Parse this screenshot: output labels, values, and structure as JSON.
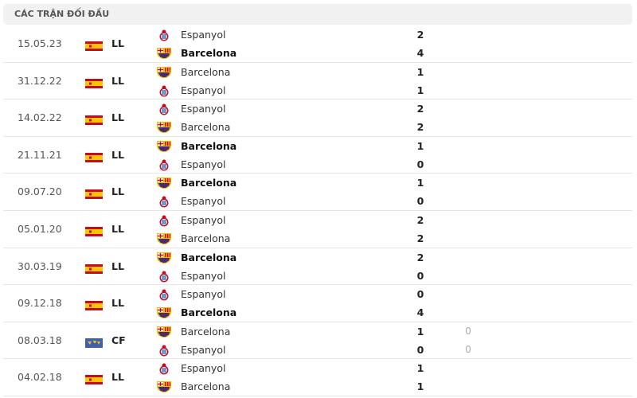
{
  "title": "CÁC TRẬN ĐỐI ĐẦU",
  "colors": {
    "espanyol": "#1a5bb5",
    "barcelona_red": "#a50044",
    "barcelona_blue": "#004d98",
    "spain_red": "#c60b1e",
    "spain_yellow": "#ffc400"
  },
  "matches": [
    {
      "date": "15.05.23",
      "comp": "LL",
      "flag": "spain-flag",
      "teams": [
        {
          "name": "Espanyol",
          "logo": "espanyol",
          "score": "2",
          "bold": false
        },
        {
          "name": "Barcelona",
          "logo": "barcelona",
          "score": "4",
          "bold": true
        }
      ]
    },
    {
      "date": "31.12.22",
      "comp": "LL",
      "flag": "spain-flag",
      "teams": [
        {
          "name": "Barcelona",
          "logo": "barcelona",
          "score": "1",
          "bold": false
        },
        {
          "name": "Espanyol",
          "logo": "espanyol",
          "score": "1",
          "bold": false
        }
      ]
    },
    {
      "date": "14.02.22",
      "comp": "LL",
      "flag": "spain-flag",
      "teams": [
        {
          "name": "Espanyol",
          "logo": "espanyol",
          "score": "2",
          "bold": false
        },
        {
          "name": "Barcelona",
          "logo": "barcelona",
          "score": "2",
          "bold": false
        }
      ]
    },
    {
      "date": "21.11.21",
      "comp": "LL",
      "flag": "spain-flag",
      "teams": [
        {
          "name": "Barcelona",
          "logo": "barcelona",
          "score": "1",
          "bold": true
        },
        {
          "name": "Espanyol",
          "logo": "espanyol",
          "score": "0",
          "bold": false
        }
      ]
    },
    {
      "date": "09.07.20",
      "comp": "LL",
      "flag": "spain-flag",
      "teams": [
        {
          "name": "Barcelona",
          "logo": "barcelona",
          "score": "1",
          "bold": true
        },
        {
          "name": "Espanyol",
          "logo": "espanyol",
          "score": "0",
          "bold": false
        }
      ]
    },
    {
      "date": "05.01.20",
      "comp": "LL",
      "flag": "spain-flag",
      "teams": [
        {
          "name": "Espanyol",
          "logo": "espanyol",
          "score": "2",
          "bold": false
        },
        {
          "name": "Barcelona",
          "logo": "barcelona",
          "score": "2",
          "bold": false
        }
      ]
    },
    {
      "date": "30.03.19",
      "comp": "LL",
      "flag": "spain-flag",
      "teams": [
        {
          "name": "Barcelona",
          "logo": "barcelona",
          "score": "2",
          "bold": true
        },
        {
          "name": "Espanyol",
          "logo": "espanyol",
          "score": "0",
          "bold": false
        }
      ]
    },
    {
      "date": "09.12.18",
      "comp": "LL",
      "flag": "spain-flag",
      "teams": [
        {
          "name": "Espanyol",
          "logo": "espanyol",
          "score": "0",
          "bold": false
        },
        {
          "name": "Barcelona",
          "logo": "barcelona",
          "score": "4",
          "bold": true
        }
      ]
    },
    {
      "date": "08.03.18",
      "comp": "CF",
      "flag": "world-flag",
      "teams": [
        {
          "name": "Barcelona",
          "logo": "barcelona",
          "score": "1",
          "extra": "0",
          "bold": false
        },
        {
          "name": "Espanyol",
          "logo": "espanyol",
          "score": "0",
          "extra": "0",
          "bold": false
        }
      ]
    },
    {
      "date": "04.02.18",
      "comp": "LL",
      "flag": "spain-flag",
      "teams": [
        {
          "name": "Espanyol",
          "logo": "espanyol",
          "score": "1",
          "bold": false
        },
        {
          "name": "Barcelona",
          "logo": "barcelona",
          "score": "1",
          "bold": false
        }
      ]
    }
  ]
}
